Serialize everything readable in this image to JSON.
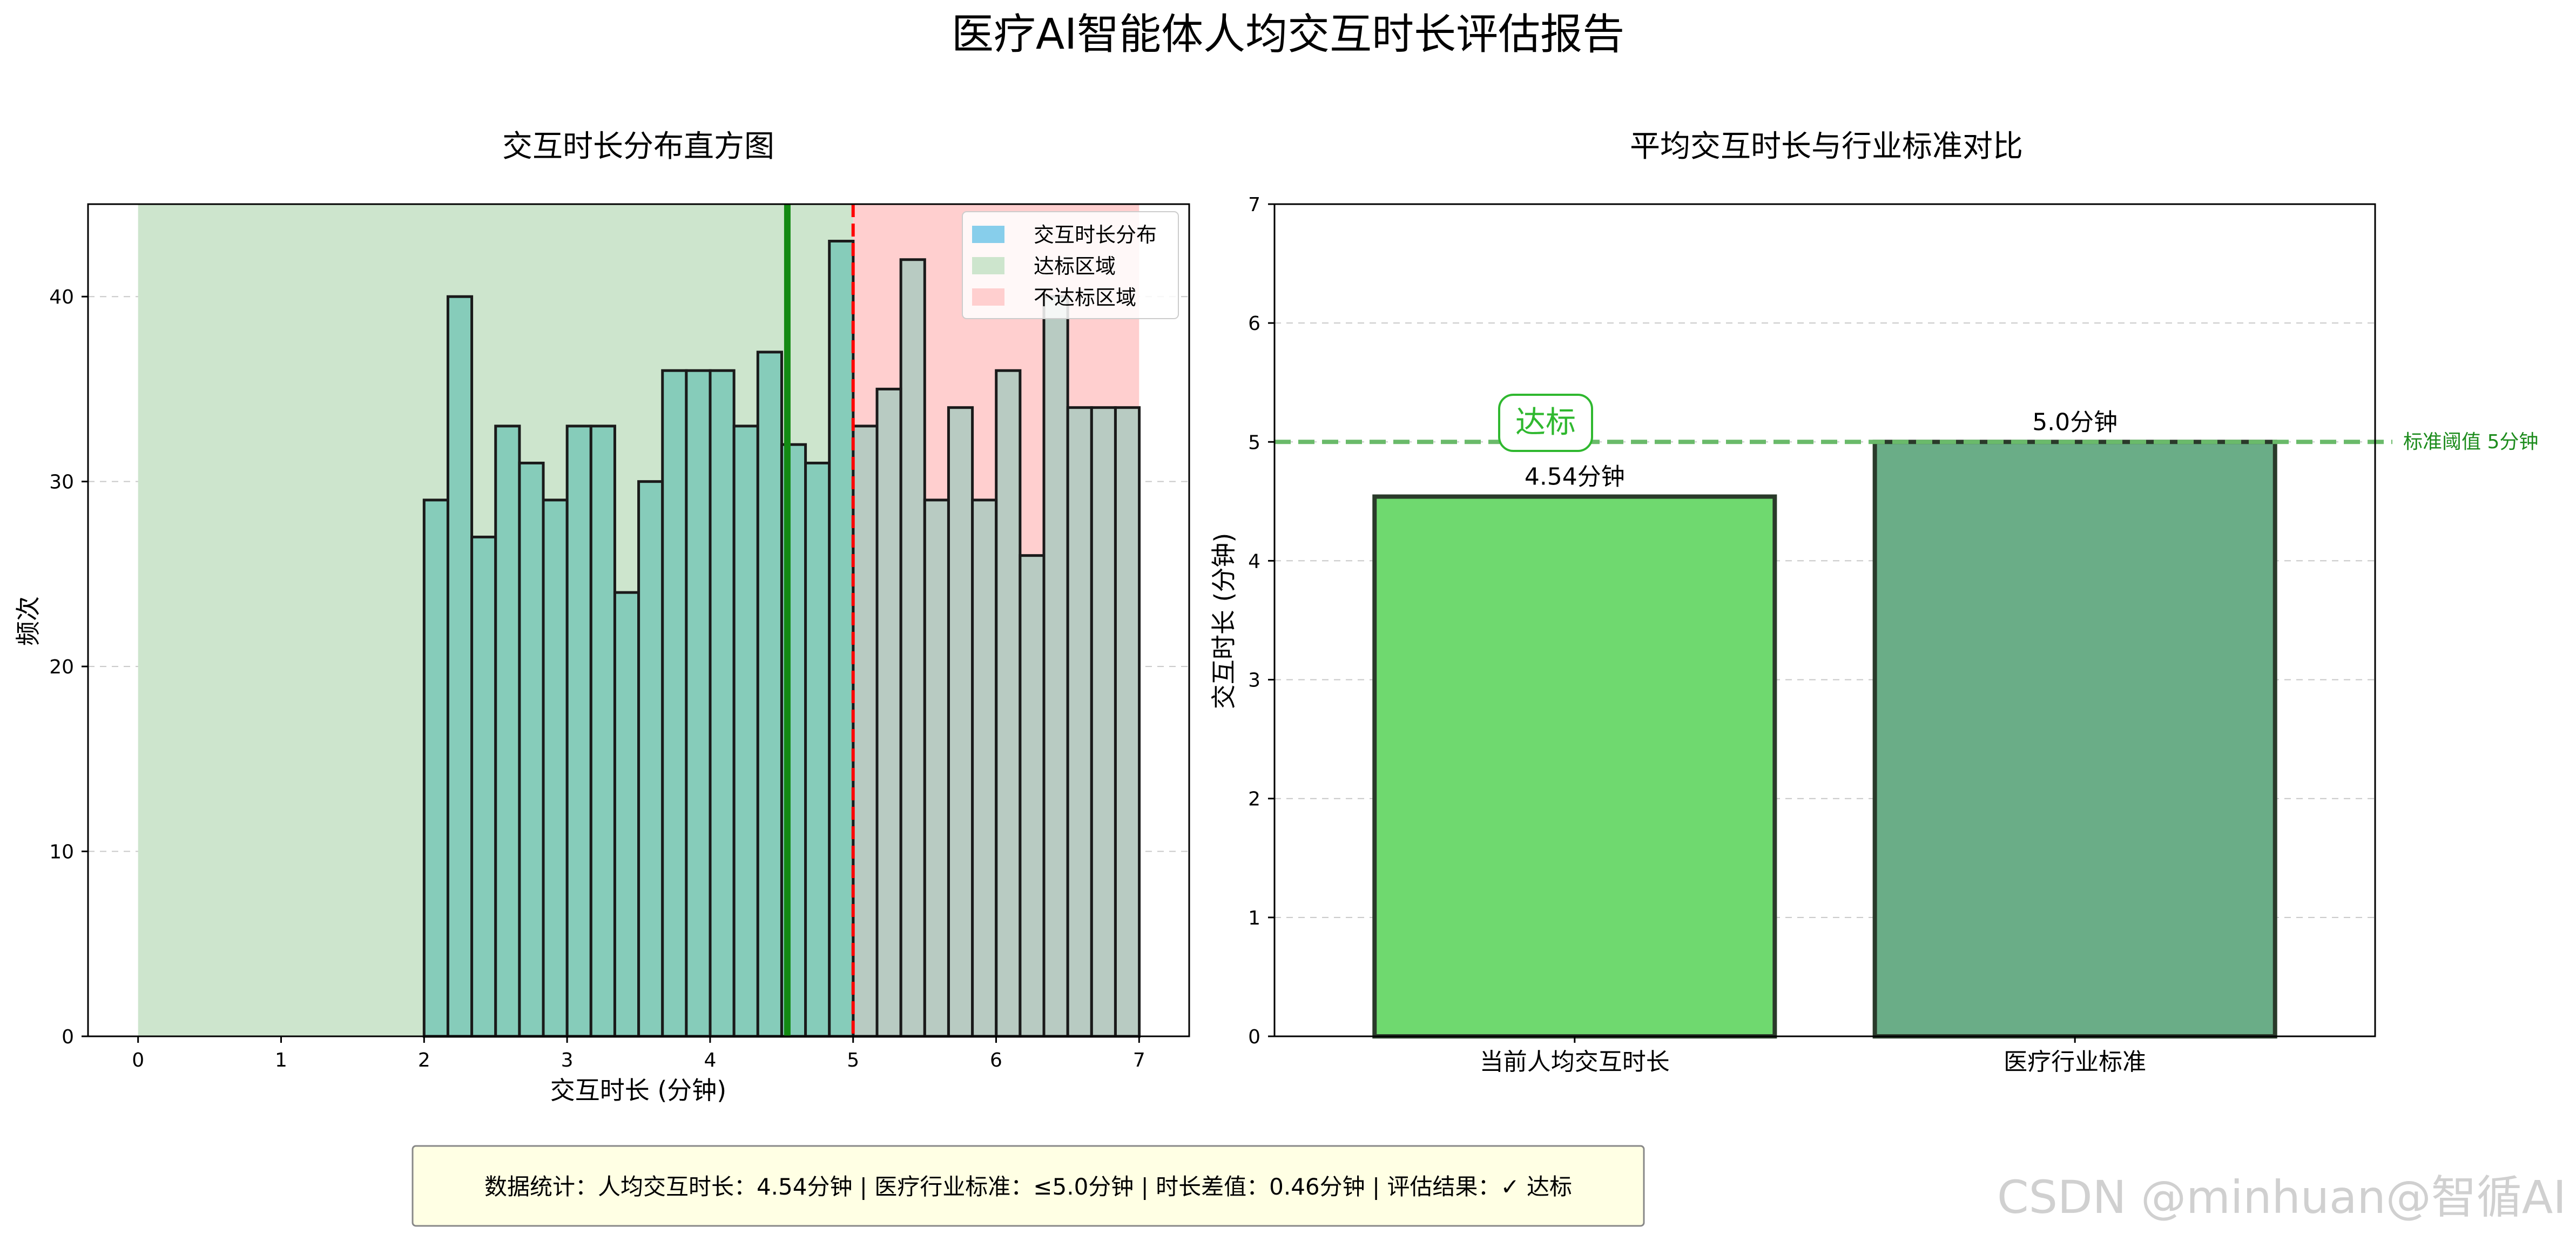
{
  "title": "医疗AI智能体人均交互时长评估报告",
  "colors": {
    "hist_fill": "#7ec9b8",
    "hist_edge": "#1a1a1a",
    "pass_zone": "#cde5cd",
    "fail_zone": "#ffcfcf",
    "current_line": "#138a13",
    "threshold_line": "#ff0000",
    "bar_current": "#6fd96f",
    "bar_standard": "#6aad87",
    "standard_hline": "#6aba6a",
    "badge": "#2fb82f",
    "legend_hist_patch": "#87ceeb",
    "stats_bg": "#ffffe4",
    "annotation_green": "#1d8c1d"
  },
  "chart_data": [
    {
      "type": "histogram",
      "title": "交互时长分布直方图",
      "xlabel": "交互时长 (分钟)",
      "ylabel": "频次",
      "xlim": [
        -0.35,
        7.35
      ],
      "ylim": [
        0,
        45
      ],
      "xticks": [
        0,
        1,
        2,
        3,
        4,
        5,
        6,
        7
      ],
      "yticks": [
        0,
        10,
        20,
        30,
        40
      ],
      "grid": "y-dashed",
      "bin_start": 2.0,
      "bin_width": 0.1667,
      "counts": [
        29,
        40,
        27,
        33,
        31,
        29,
        33,
        33,
        24,
        30,
        36,
        36,
        36,
        33,
        37,
        32,
        31,
        43,
        33,
        35,
        42,
        29,
        34,
        29,
        36,
        26,
        40,
        34,
        34,
        34
      ],
      "pass_region": [
        0,
        5
      ],
      "fail_region": [
        5,
        7
      ],
      "current_value_line": 4.54,
      "threshold_line": 5,
      "legend": {
        "position": "top-right",
        "entries": [
          "交互时长分布",
          "达标区域",
          "不达标区域"
        ]
      }
    },
    {
      "type": "bar",
      "title": "平均交互时长与行业标准对比",
      "categories": [
        "当前人均交互时长",
        "医疗行业标准"
      ],
      "values": [
        4.54,
        5.0
      ],
      "value_labels": [
        "4.54分钟",
        "5.0分钟"
      ],
      "ylabel": "交互时长 (分钟)",
      "ylim": [
        0,
        7
      ],
      "yticks": [
        0,
        1,
        2,
        3,
        4,
        5,
        6,
        7
      ],
      "grid": "y-dashed",
      "standard_line": 5,
      "standard_line_label": "标准阈值 5分钟",
      "badge_text": "达标"
    }
  ],
  "stats_text": "数据统计：人均交互时长：4.54分钟 | 医疗行业标准：≤5.0分钟 | 时长差值：0.46分钟 | 评估结果：✓ 达标",
  "watermark": "CSDN @minhuan@智循AI"
}
